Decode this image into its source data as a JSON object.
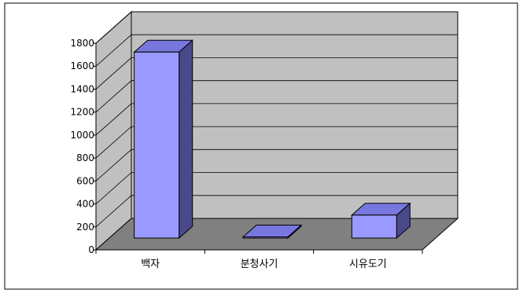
{
  "chart_data": {
    "type": "bar",
    "style": "3d",
    "categories": [
      "백자",
      "분청사기",
      "시유도기"
    ],
    "values": [
      1620,
      10,
      200
    ],
    "ylim": [
      0,
      1800
    ],
    "yticks": [
      "0",
      "200",
      "400",
      "600",
      "800",
      "1000",
      "1200",
      "1400",
      "1600",
      "1800"
    ],
    "grid": true,
    "legend": "none",
    "colors": {
      "bar_front": "#9999ff",
      "bar_top": "#7777dd",
      "bar_side": "#4a4a8a",
      "wall": "#c0c0c0",
      "floor": "#808080",
      "grid": "#000000"
    }
  }
}
